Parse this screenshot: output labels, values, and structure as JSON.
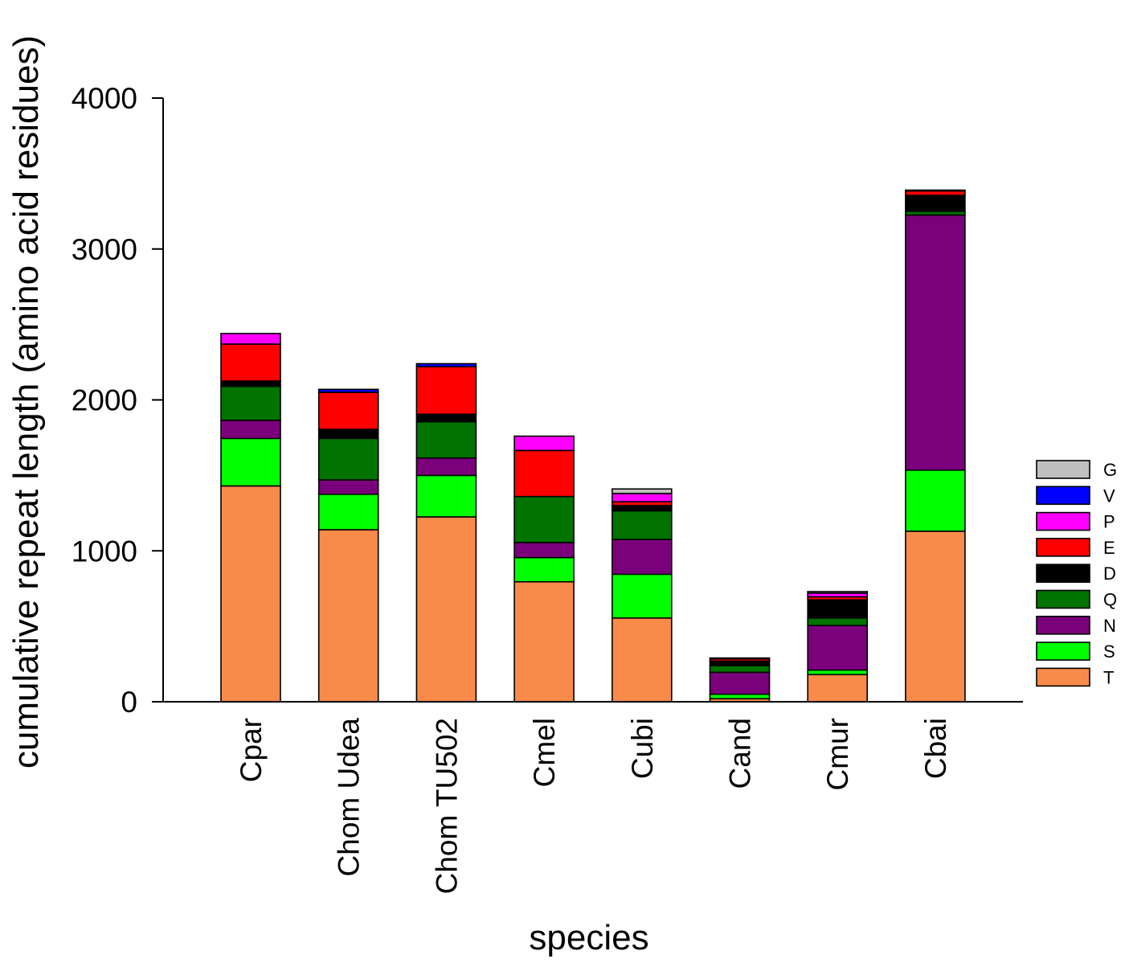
{
  "chart_data": {
    "type": "bar",
    "stacked": true,
    "title": "",
    "xlabel": "species",
    "ylabel": "cumulative repeat length (amino acid residues)",
    "ylim": [
      0,
      4000
    ],
    "yticks": [
      0,
      1000,
      2000,
      3000,
      4000
    ],
    "ytick_labels": [
      "0",
      "1000",
      "2000",
      "3000",
      "4000"
    ],
    "grid": false,
    "legend_position": "right",
    "categories": [
      "Cpar",
      "Chom Udea",
      "Chom TU502",
      "Cmel",
      "Cubi",
      "Cand",
      "Cmur",
      "Cbai"
    ],
    "series": [
      {
        "name": "T",
        "color": "#F88B4A",
        "values": [
          1430,
          1140,
          1225,
          795,
          555,
          20,
          180,
          1130
        ]
      },
      {
        "name": "S",
        "color": "#00FF00",
        "values": [
          315,
          235,
          275,
          160,
          290,
          30,
          30,
          405
        ]
      },
      {
        "name": "N",
        "color": "#7B007B",
        "values": [
          120,
          95,
          115,
          100,
          230,
          145,
          295,
          1690
        ]
      },
      {
        "name": "Q",
        "color": "#007300",
        "values": [
          225,
          275,
          240,
          305,
          190,
          45,
          50,
          25
        ]
      },
      {
        "name": "D",
        "color": "#000000",
        "values": [
          35,
          60,
          50,
          0,
          35,
          30,
          120,
          105
        ]
      },
      {
        "name": "E",
        "color": "#FF0000",
        "values": [
          245,
          245,
          315,
          305,
          25,
          15,
          20,
          30
        ]
      },
      {
        "name": "P",
        "color": "#FF00FF",
        "values": [
          70,
          0,
          0,
          95,
          55,
          5,
          25,
          5
        ]
      },
      {
        "name": "V",
        "color": "#0000FF",
        "values": [
          0,
          20,
          20,
          0,
          0,
          0,
          0,
          0
        ]
      },
      {
        "name": "G",
        "color": "#C0C0C0",
        "values": [
          0,
          0,
          0,
          0,
          30,
          0,
          10,
          0
        ]
      }
    ],
    "legend_order": [
      "G",
      "V",
      "P",
      "E",
      "D",
      "Q",
      "N",
      "S",
      "T"
    ]
  }
}
